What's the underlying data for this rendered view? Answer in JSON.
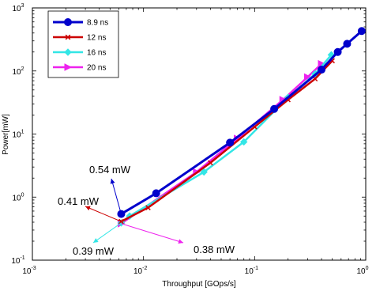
{
  "chart_data": {
    "type": "line",
    "xscale": "log",
    "yscale": "log",
    "xlim": [
      0.001,
      1
    ],
    "ylim": [
      0.1,
      1000
    ],
    "xlabel": "Throughput [GOps/s]",
    "ylabel": "Power[mW]",
    "x_ticks": [
      {
        "base": "10",
        "exp": "-3",
        "value": 0.001
      },
      {
        "base": "10",
        "exp": "-2",
        "value": 0.01
      },
      {
        "base": "10",
        "exp": "-1",
        "value": 0.1
      },
      {
        "base": "10",
        "exp": "0",
        "value": 1
      }
    ],
    "y_ticks": [
      {
        "base": "10",
        "exp": "-1",
        "value": 0.1
      },
      {
        "base": "10",
        "exp": "0",
        "value": 1
      },
      {
        "base": "10",
        "exp": "1",
        "value": 10
      },
      {
        "base": "10",
        "exp": "2",
        "value": 100
      },
      {
        "base": "10",
        "exp": "3",
        "value": 1000
      }
    ],
    "grid": false,
    "legend_position": "top-left",
    "series": [
      {
        "name": "8.9 ns",
        "color": "#0000cc",
        "marker": "circle",
        "x": [
          0.0063,
          0.013,
          0.06,
          0.15,
          0.4,
          0.56,
          0.68,
          0.92
        ],
        "y": [
          0.54,
          1.15,
          7.3,
          25,
          105,
          200,
          270,
          430
        ]
      },
      {
        "name": "12 ns",
        "color": "#cc0000",
        "marker": "x",
        "x": [
          0.0063,
          0.011,
          0.04,
          0.1,
          0.2,
          0.35,
          0.5
        ],
        "y": [
          0.41,
          0.68,
          3.5,
          13,
          35,
          75,
          145
        ]
      },
      {
        "name": "16 ns",
        "color": "#33e6e6",
        "marker": "diamond",
        "x": [
          0.0063,
          0.0075,
          0.035,
          0.08,
          0.2,
          0.35,
          0.49
        ],
        "y": [
          0.39,
          0.5,
          2.5,
          7.5,
          38,
          90,
          180
        ]
      },
      {
        "name": "20 ns",
        "color": "#ee22ee",
        "marker": "triangle-right",
        "x": [
          0.0063,
          0.03,
          0.07,
          0.18,
          0.3,
          0.4
        ],
        "y": [
          0.38,
          2.5,
          8.5,
          35,
          80,
          130
        ]
      }
    ],
    "annotations": [
      {
        "text": "0.54 mW",
        "color": "#0000cc",
        "x": 0.0063,
        "y": 0.54
      },
      {
        "text": "0.41 mW",
        "color": "#cc0000",
        "x": 0.0063,
        "y": 0.41
      },
      {
        "text": "0.39 mW",
        "color": "#33e6e6",
        "x": 0.0063,
        "y": 0.39
      },
      {
        "text": "0.38 mW",
        "color": "#ee22ee",
        "x": 0.0063,
        "y": 0.38
      }
    ]
  }
}
